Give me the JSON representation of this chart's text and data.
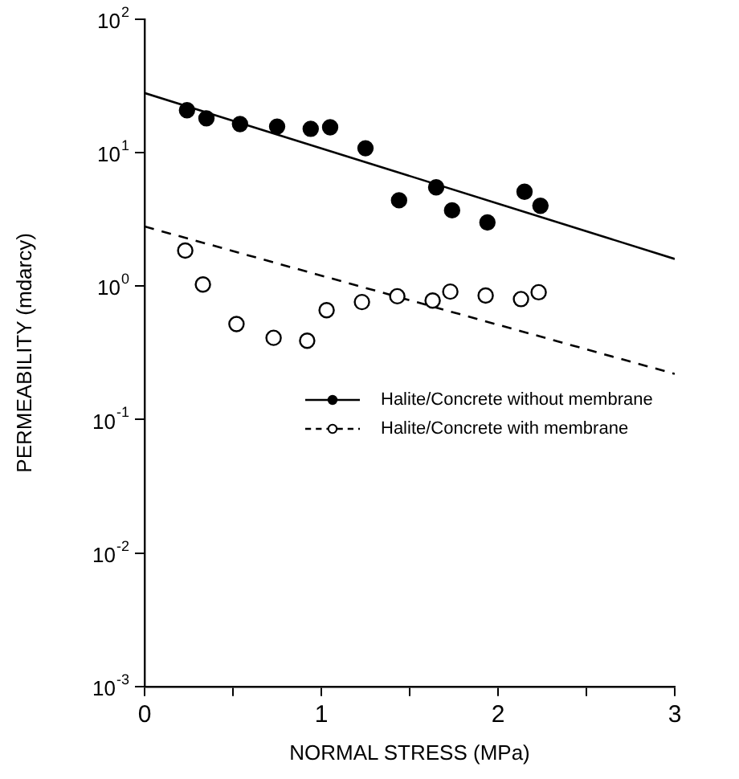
{
  "chart_data": {
    "type": "scatter",
    "xlabel": "NORMAL STRESS (MPa)",
    "ylabel": "PERMEABILITY (mdarcy)",
    "log": "y",
    "xlim": [
      0,
      3
    ],
    "ylim": [
      0.001,
      100
    ],
    "xticks": [
      0,
      {
        "value": 0.5,
        "label": null
      },
      1,
      {
        "value": 1.5,
        "label": null
      },
      2,
      {
        "value": 2.5,
        "label": null
      },
      3
    ],
    "yticks": [
      {
        "value": 0.001,
        "label": "10$^{-3}$"
      },
      {
        "value": 0.01,
        "label": "10$^{-2}$"
      },
      {
        "value": 0.1,
        "label": "10$^{-1}$"
      },
      {
        "value": 1,
        "label": "10$^{0}$"
      },
      {
        "value": 10,
        "label": "10$^{1}$"
      },
      {
        "value": 100,
        "label": "10$^{2}$"
      }
    ],
    "grid": false,
    "legend": "right",
    "series": [
      {
        "name": "Halite/Concrete without membrane",
        "color": "#000000",
        "marker": "circle",
        "line_style": "solid",
        "x": [
          0.24,
          0.35,
          0.54,
          0.75,
          0.94,
          1.05,
          1.25,
          1.44,
          1.65,
          1.74,
          1.94,
          2.15,
          2.24
        ],
        "values": [
          20.8,
          18.1,
          16.4,
          15.7,
          15.1,
          15.5,
          10.8,
          4.4,
          5.5,
          3.7,
          3.0,
          5.1,
          4.0
        ]
      },
      {
        "name": "Halite/Concrete with membrane",
        "color": "#ffffff",
        "marker": "circle",
        "line_style": "dashed",
        "x": [
          0.23,
          0.33,
          0.52,
          0.73,
          0.92,
          1.03,
          1.23,
          1.43,
          1.63,
          1.73,
          1.93,
          2.13,
          2.23
        ],
        "values": [
          1.85,
          1.03,
          0.52,
          0.41,
          0.39,
          0.66,
          0.76,
          0.84,
          0.78,
          0.91,
          0.85,
          0.8,
          0.9
        ]
      },
      {
        "type": "line",
        "color": "#000000",
        "marker": "none",
        "line_style": "solid",
        "x": [
          0,
          3
        ],
        "values": [
          28,
          1.6
        ]
      },
      {
        "type": "line",
        "color": "#000000",
        "marker": "none",
        "line_style": "dashed",
        "x": [
          0,
          3
        ],
        "values": [
          2.8,
          0.22
        ]
      }
    ]
  }
}
